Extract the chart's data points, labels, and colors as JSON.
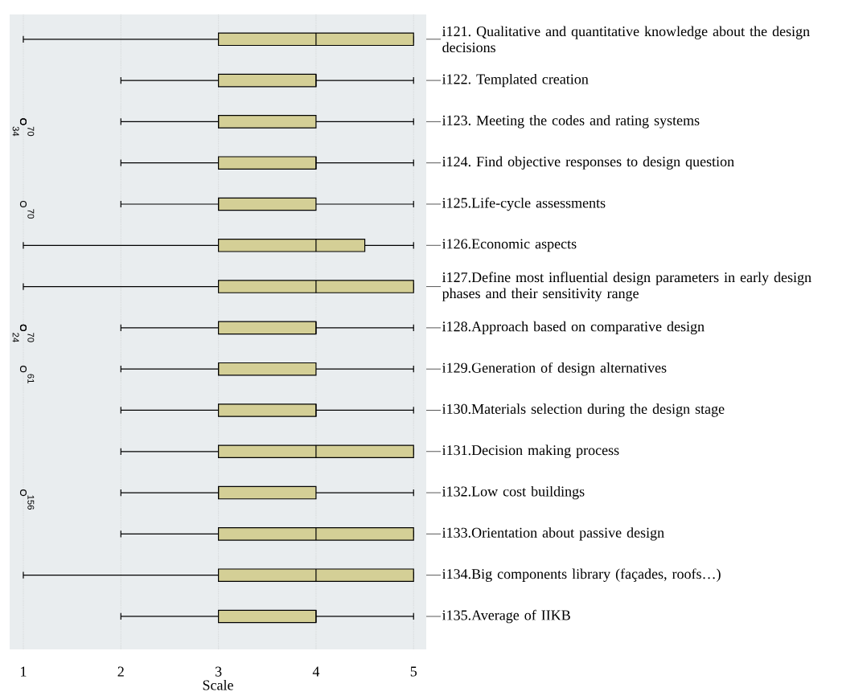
{
  "chart_data": {
    "type": "box",
    "orientation": "horizontal",
    "xlabel": "Scale",
    "color": "#d4cf96",
    "grid": "x",
    "xlim": [
      0.86,
      5.13
    ],
    "xticks": [
      1,
      2,
      3,
      4,
      5
    ],
    "categories": [
      "i121. Qualitative and quantitative knowledge about the design decisions",
      "i122. Templated creation",
      "i123. Meeting the codes and rating systems",
      "i124. Find objective responses to design question",
      "i125.Life-cycle assessments",
      "i126.Economic aspects",
      "i127.Define most influential design parameters in early design phases and their sensitivity range",
      "i128.Approach based on comparative design",
      "i129.Generation of design alternatives",
      "i130.Materials selection during the design stage",
      "i131.Decision making process",
      "i132.Low cost buildings",
      "i133.Orientation about passive design",
      "i134.Big components library (façades, roofs…)",
      "i135.Average of IIKB"
    ],
    "boxes": [
      {
        "low": 1,
        "q1": 3,
        "median": 4,
        "q3": 5,
        "high": 5
      },
      {
        "low": 2,
        "q1": 3,
        "median": 4,
        "q3": 4,
        "high": 5
      },
      {
        "low": 2,
        "q1": 3,
        "median": 3,
        "q3": 4,
        "high": 5,
        "outliers": [
          1,
          1
        ]
      },
      {
        "low": 2,
        "q1": 3,
        "median": 4,
        "q3": 4,
        "high": 5
      },
      {
        "low": 2,
        "q1": 3,
        "median": 3,
        "q3": 4,
        "high": 5,
        "outliers": [
          1
        ]
      },
      {
        "low": 1,
        "q1": 3,
        "median": 4,
        "q3": 4.5,
        "high": 5
      },
      {
        "low": 1,
        "q1": 3,
        "median": 4,
        "q3": 5,
        "high": 5
      },
      {
        "low": 2,
        "q1": 3,
        "median": 4,
        "q3": 4,
        "high": 5,
        "outliers": [
          1,
          1
        ]
      },
      {
        "low": 2,
        "q1": 3,
        "median": 3,
        "q3": 4,
        "high": 5,
        "outliers": [
          1
        ]
      },
      {
        "low": 2,
        "q1": 3,
        "median": 4,
        "q3": 4,
        "high": 5
      },
      {
        "low": 2,
        "q1": 3,
        "median": 4,
        "q3": 5,
        "high": 5
      },
      {
        "low": 2,
        "q1": 3,
        "median": 3,
        "q3": 4,
        "high": 5,
        "outliers": [
          1
        ]
      },
      {
        "low": 2,
        "q1": 3,
        "median": 4,
        "q3": 5,
        "high": 5
      },
      {
        "low": 1,
        "q1": 3,
        "median": 4,
        "q3": 5,
        "high": 5
      },
      {
        "low": 2,
        "q1": 3,
        "median": 4,
        "q3": 4,
        "high": 5
      }
    ],
    "annotations": [
      "70",
      "34",
      "70",
      "70",
      "24",
      "61",
      "156"
    ]
  }
}
